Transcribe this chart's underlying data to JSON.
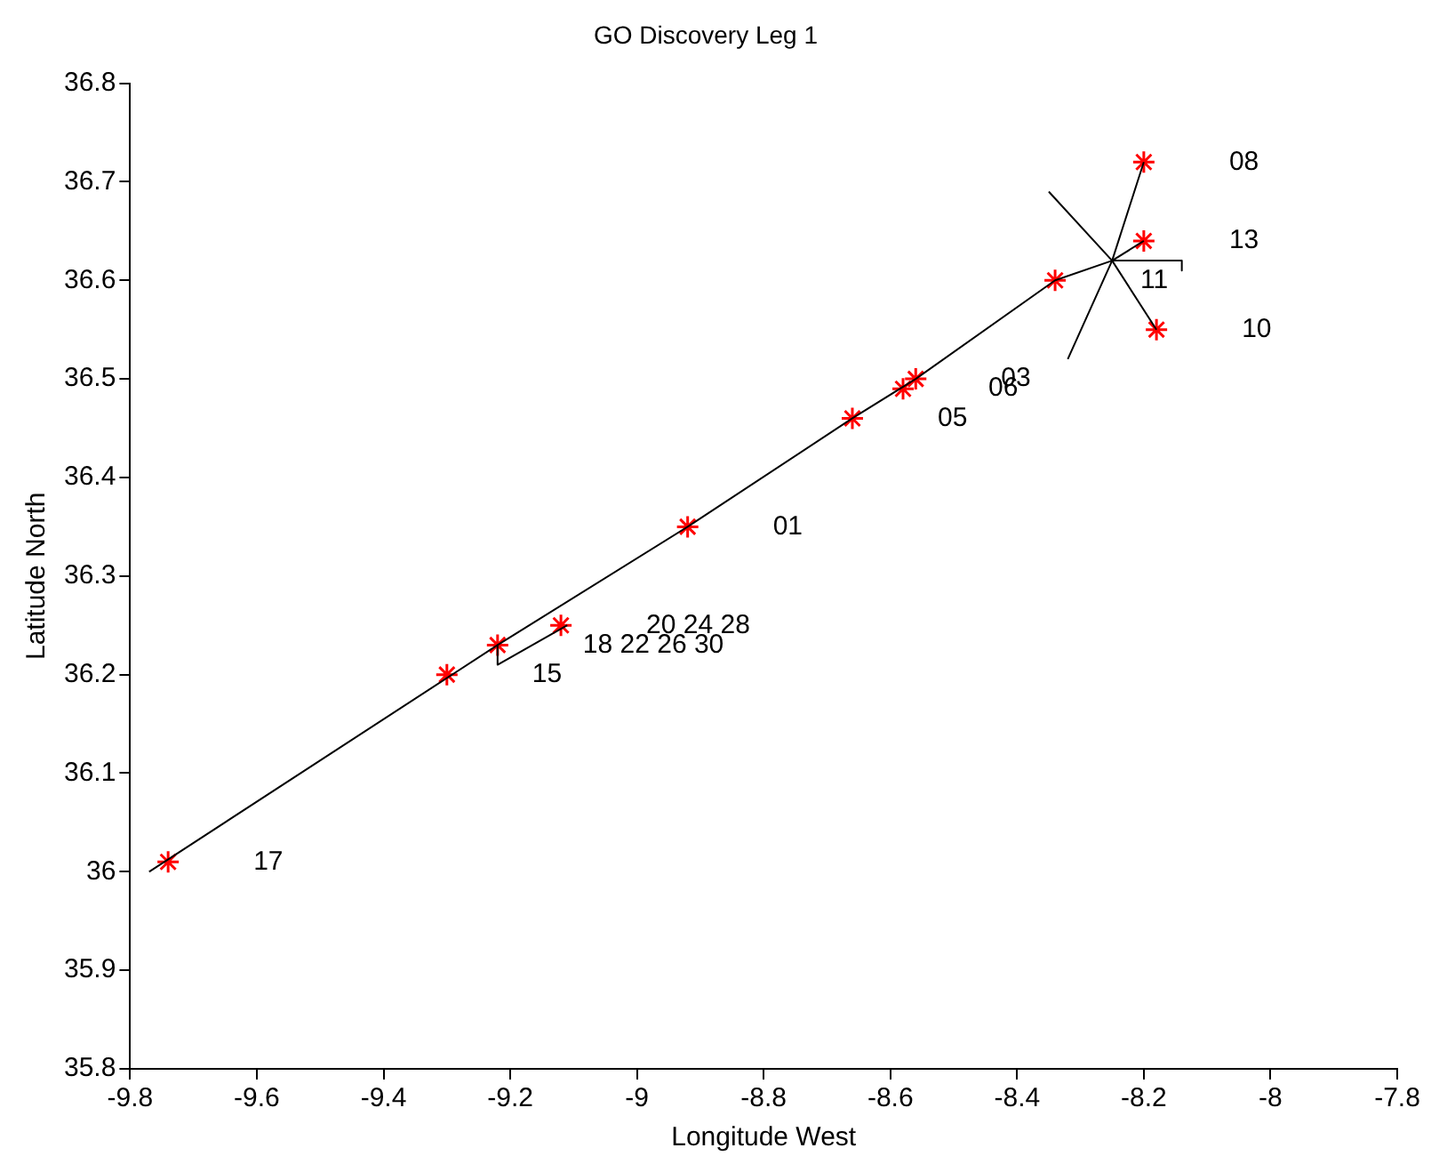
{
  "chart_data": {
    "type": "line",
    "title": "GO Discovery Leg 1",
    "xlabel": "Longitude West",
    "ylabel": "Latitude North",
    "xlim": [
      -9.8,
      -7.8
    ],
    "xticks": [
      -9.8,
      -9.6,
      -9.4,
      -9.2,
      -9,
      -8.8,
      -8.6,
      -8.4,
      -8.2,
      -8,
      -7.8
    ],
    "ylim": [
      35.8,
      36.8
    ],
    "yticks": [
      35.8,
      35.9,
      36,
      36.1,
      36.2,
      36.3,
      36.4,
      36.5,
      36.6,
      36.7,
      36.8
    ],
    "grid": false,
    "legend": false,
    "series": [
      {
        "type": "line",
        "color": "#000000",
        "marker": "none",
        "x": [
          -9.77,
          -9.22,
          -8.92,
          -8.66,
          -8.56,
          -8.34,
          -8.25,
          -8.14,
          -8.14
        ],
        "values": [
          36.0,
          36.23,
          36.35,
          36.46,
          36.5,
          36.6,
          36.62,
          36.62,
          36.61
        ]
      },
      {
        "type": "line",
        "color": "#000000",
        "marker": "none",
        "x": [
          -9.22,
          -9.22,
          -9.11
        ],
        "values": [
          36.23,
          36.21,
          36.25
        ]
      },
      {
        "type": "line",
        "color": "#000000",
        "marker": "none",
        "x": [
          -8.35,
          -8.25,
          -8.32
        ],
        "values": [
          36.69,
          36.62,
          36.52
        ]
      },
      {
        "type": "line",
        "color": "#000000",
        "marker": "none",
        "x": [
          -8.2,
          -8.25,
          -8.18
        ],
        "values": [
          36.72,
          36.62,
          36.55
        ]
      },
      {
        "type": "line",
        "color": "#000000",
        "marker": "none",
        "x": [
          -8.25,
          -8.2
        ],
        "values": [
          36.62,
          36.64
        ]
      },
      {
        "type": "scatter",
        "color": "#ff0000",
        "marker": "cross",
        "x": [
          -8.2,
          -8.2,
          -8.18,
          -8.34,
          -8.56,
          -8.58,
          -8.66,
          -8.92,
          -9.12,
          -9.22,
          -9.3,
          -9.74
        ],
        "values": [
          36.72,
          36.64,
          36.55,
          36.6,
          36.5,
          36.49,
          36.46,
          36.35,
          36.25,
          36.23,
          36.2,
          36.01
        ]
      }
    ],
    "annotations": [
      "08",
      "13",
      "10",
      "11",
      "03",
      "06",
      "05",
      "01",
      "20 24 28",
      "18 22 26 30",
      "15",
      "17"
    ]
  }
}
